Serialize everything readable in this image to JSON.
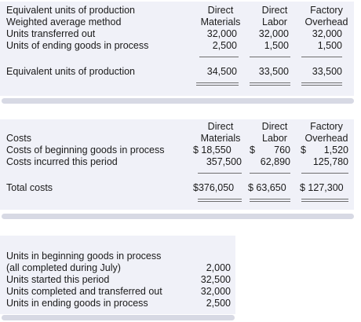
{
  "eup": {
    "header_left": [
      "Equivalent units of production",
      "Weighted average method"
    ],
    "columns": [
      {
        "line1": "Direct",
        "line2": "Materials"
      },
      {
        "line1": "Direct",
        "line2": "Labor"
      },
      {
        "line1": "Factory",
        "line2": "Overhead"
      }
    ],
    "rows": [
      {
        "label": "Units transferred out",
        "values": [
          "32,000",
          "32,000",
          "32,000"
        ]
      },
      {
        "label": "Units of ending goods in process",
        "values": [
          "2,500",
          "1,500",
          "1,500"
        ]
      }
    ],
    "total": {
      "label": "Equivalent units of production",
      "values": [
        "34,500",
        "33,500",
        "33,500"
      ]
    }
  },
  "costs": {
    "title": "Costs",
    "columns": [
      {
        "line1": "Direct",
        "line2": "Materials"
      },
      {
        "line1": "Direct",
        "line2": "Labor"
      },
      {
        "line1": "Factory",
        "line2": "Overhead"
      }
    ],
    "rows": [
      {
        "label": "Costs of beginning goods in process",
        "values": [
          "$ 18,550",
          "$",
          "760",
          "$",
          "1,520"
        ]
      },
      {
        "label": "Costs incurred this period",
        "values": [
          "357,500",
          "62,890",
          "125,780"
        ]
      }
    ],
    "total": {
      "label": "Total costs",
      "values": [
        "$376,050",
        "$ 63,650",
        "$ 127,300"
      ]
    }
  },
  "units": {
    "rows": [
      {
        "label": "Units in beginning goods in process",
        "value": ""
      },
      {
        "label": "(all completed during July)",
        "value": "2,000"
      },
      {
        "label": "Units started this period",
        "value": "32,500"
      },
      {
        "label": "Units completed and transferred out",
        "value": "32,000"
      },
      {
        "label": "Units in ending goods in process",
        "value": "2,500"
      }
    ]
  }
}
